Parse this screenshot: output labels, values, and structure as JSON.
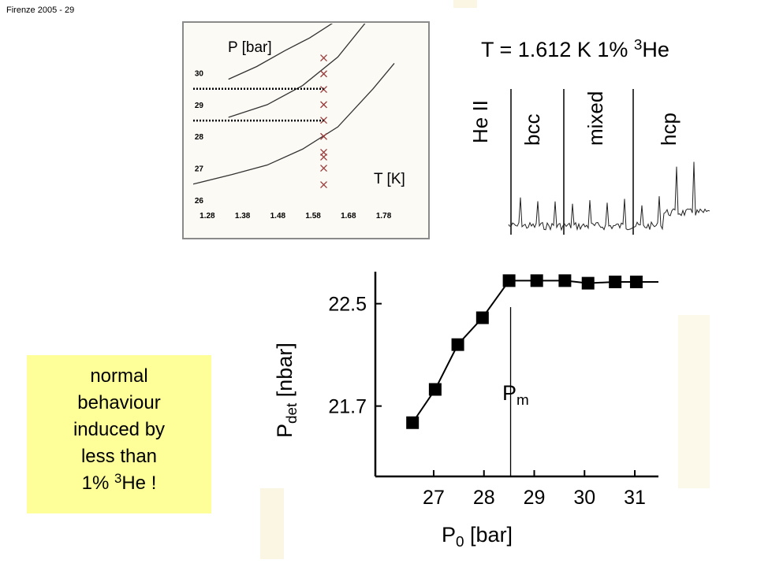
{
  "header": "Firenze 2005 - 29",
  "note": {
    "lines": [
      "normal",
      "behaviour",
      "induced by",
      "less than"
    ],
    "last": {
      "before": "1% ",
      "sup": "3",
      "after": "He !"
    }
  },
  "trace": {
    "title": {
      "before": "T = 1.612 K  1% ",
      "sup": "3",
      "after": "He"
    },
    "phases": [
      "He II",
      "bcc",
      "mixed",
      "hcp"
    ]
  },
  "chart_data": [
    {
      "type": "line",
      "y_label": "P [bar]",
      "x_label": "T [K]",
      "xlim": [
        1.24,
        1.81
      ],
      "ylim": [
        25.8,
        31.6
      ],
      "xticks": [
        1.28,
        1.38,
        1.48,
        1.58,
        1.68,
        1.78
      ],
      "yticks": [
        26,
        27,
        28,
        29,
        30
      ],
      "color": "#333333",
      "series": [
        {
          "x": [
            1.34,
            1.42,
            1.5,
            1.57,
            1.64
          ],
          "values": [
            29.8,
            30.2,
            30.7,
            31.1,
            31.6
          ]
        },
        {
          "x": [
            1.34,
            1.45,
            1.55,
            1.65,
            1.73
          ],
          "values": [
            28.6,
            29.0,
            29.6,
            30.5,
            31.6
          ]
        },
        {
          "x": [
            1.24,
            1.35,
            1.45,
            1.55,
            1.65,
            1.75,
            1.81
          ],
          "values": [
            26.5,
            26.8,
            27.1,
            27.6,
            28.3,
            29.5,
            30.3
          ]
        }
      ],
      "markers": {
        "color": "#9a3a3a",
        "x": [
          1.61,
          1.61,
          1.61,
          1.61,
          1.61,
          1.61,
          1.61,
          1.61,
          1.61,
          1.61
        ],
        "values": [
          30.47,
          29.97,
          29.48,
          29.0,
          28.51,
          28.0,
          27.5,
          27.35,
          27.0,
          26.48
        ]
      },
      "hlines": [
        29.5,
        28.5
      ]
    },
    {
      "type": "scatter",
      "x_label": {
        "main": "P",
        "sub": "0",
        "rest": " [bar]"
      },
      "y_label": {
        "main": "P",
        "sub": "det",
        "rest": "  [nbar]"
      },
      "xlim": [
        25.84,
        31.47
      ],
      "ylim": [
        21.15,
        22.75
      ],
      "xticks": [
        27,
        28,
        29,
        30,
        31
      ],
      "yticks": [
        22.5,
        21.7
      ],
      "color": "#000000",
      "x": [
        26.58,
        27.03,
        27.48,
        27.97,
        28.5,
        29.05,
        29.61,
        30.07,
        30.61,
        31.03
      ],
      "values": [
        21.57,
        21.83,
        22.18,
        22.39,
        22.68,
        22.68,
        22.68,
        22.66,
        22.67,
        22.67
      ],
      "vline": 28.53,
      "annotation": {
        "main": "P",
        "sub": "m"
      }
    }
  ]
}
